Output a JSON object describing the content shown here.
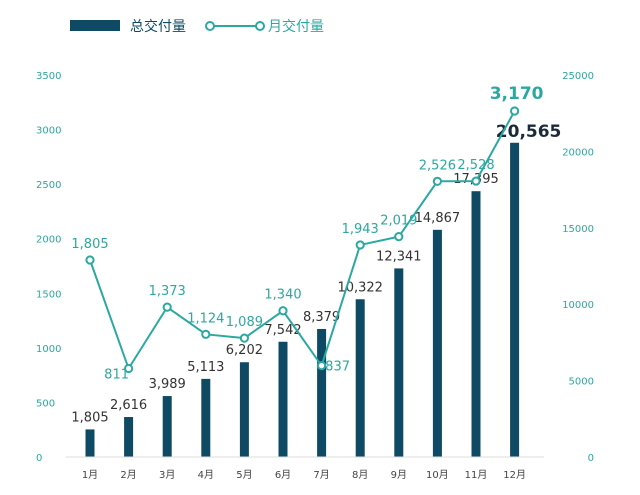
{
  "chart_data": {
    "type": "bar+line",
    "categories": [
      "1月",
      "2月",
      "3月",
      "4月",
      "5月",
      "6月",
      "7月",
      "8月",
      "9月",
      "10月",
      "11月",
      "12月"
    ],
    "series": [
      {
        "name": "总交付量",
        "type": "bar",
        "axis": "right",
        "color": "#0e4a63",
        "values": [
          1805,
          2616,
          3989,
          5113,
          6202,
          7542,
          8379,
          10322,
          12341,
          14867,
          17395,
          20565
        ],
        "labels": [
          "1,805",
          "2,616",
          "3,989",
          "5,113",
          "6,202",
          "7,542",
          "8,379",
          "10,322",
          "12,341",
          "14,867",
          "17,395",
          "20,565"
        ]
      },
      {
        "name": "月交付量",
        "type": "line",
        "axis": "left",
        "color": "#2ba8a0",
        "values": [
          1805,
          811,
          1373,
          1124,
          1089,
          1340,
          837,
          1943,
          2019,
          2526,
          2528,
          3170
        ],
        "labels": [
          "1,805",
          "811",
          "1,373",
          "1,124",
          "1,089",
          "1,340",
          "837",
          "1,943",
          "2,019",
          "2,526",
          "2,528",
          "3,170"
        ]
      }
    ],
    "y_left": {
      "min": 0,
      "max": 3500,
      "ticks": [
        "0",
        "500",
        "1000",
        "1500",
        "2000",
        "2500",
        "3000",
        "3500"
      ]
    },
    "y_right": {
      "min": 0,
      "max": 25000,
      "ticks": [
        "0",
        "5000",
        "10000",
        "15000",
        "20000",
        "25000"
      ]
    },
    "legend": {
      "position": "top-left",
      "entries": [
        "总交付量",
        "月交付量"
      ]
    },
    "grid": false
  }
}
